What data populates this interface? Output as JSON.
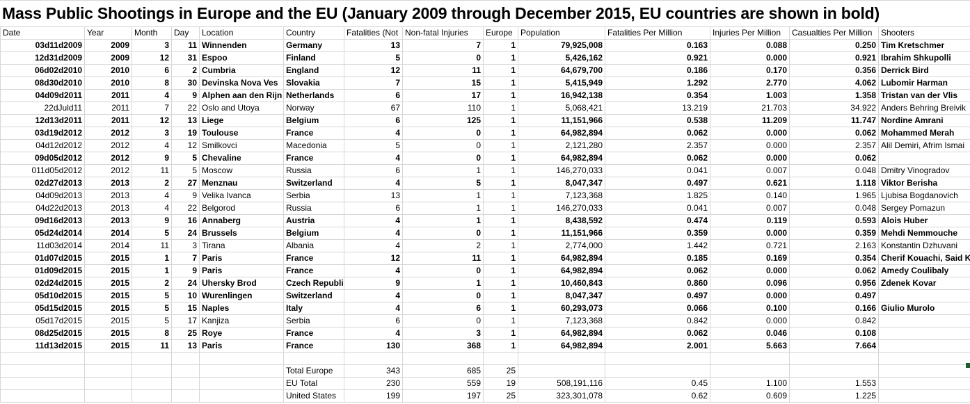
{
  "title": "Mass Public Shootings in Europe and the EU (January 2009 through December 2015, EU countries are shown in bold)",
  "colors": {
    "gridline": "#d6d6d6",
    "fill_handle": "#1e5b2e"
  },
  "table": {
    "columns": [
      "Date",
      "Year",
      "Month",
      "Day",
      "Location",
      "Country",
      "Fatalities (Not",
      "Non-fatal Injuries",
      "Europe",
      "Population",
      "Fatalities Per Million",
      "Injuries Per Million",
      "Casualties Per Million",
      "Shooters"
    ],
    "rows": [
      {
        "bold": true,
        "cells": [
          "03d11d2009",
          "2009",
          "3",
          "11",
          "Winnenden",
          "Germany",
          "13",
          "7",
          "1",
          "79,925,008",
          "0.163",
          "0.088",
          "0.250",
          "Tim Kretschmer"
        ]
      },
      {
        "bold": true,
        "cells": [
          "12d31d2009",
          "2009",
          "12",
          "31",
          "Espoo",
          "Finland",
          "5",
          "0",
          "1",
          "5,426,162",
          "0.921",
          "0.000",
          "0.921",
          "Ibrahim Shkupolli"
        ]
      },
      {
        "bold": true,
        "cells": [
          "06d02d2010",
          "2010",
          "6",
          "2",
          "Cumbria",
          "England",
          "12",
          "11",
          "1",
          "64,679,700",
          "0.186",
          "0.170",
          "0.356",
          "Derrick Bird"
        ]
      },
      {
        "bold": true,
        "cells": [
          "08d30d2010",
          "2010",
          "8",
          "30",
          "Devinska Nova Ves",
          "Slovakia",
          "7",
          "15",
          "1",
          "5,415,949",
          "1.292",
          "2.770",
          "4.062",
          "Lubomir Harman"
        ]
      },
      {
        "bold": true,
        "cells": [
          "04d09d2011",
          "2011",
          "4",
          "9",
          "Alphen aan den Rijn",
          "Netherlands",
          "6",
          "17",
          "1",
          "16,942,138",
          "0.354",
          "1.003",
          "1.358",
          "Tristan van der Vlis"
        ]
      },
      {
        "bold": false,
        "cells": [
          "22dJuld11",
          "2011",
          "7",
          "22",
          "Oslo and Utoya",
          "Norway",
          "67",
          "110",
          "1",
          "5,068,421",
          "13.219",
          "21.703",
          "34.922",
          "Anders Behring Breivik"
        ]
      },
      {
        "bold": true,
        "cells": [
          "12d13d2011",
          "2011",
          "12",
          "13",
          "Liege",
          "Belgium",
          "6",
          "125",
          "1",
          "11,151,966",
          "0.538",
          "11.209",
          "11.747",
          "Nordine Amrani"
        ]
      },
      {
        "bold": true,
        "cells": [
          "03d19d2012",
          "2012",
          "3",
          "19",
          "Toulouse",
          "France",
          "4",
          "0",
          "1",
          "64,982,894",
          "0.062",
          "0.000",
          "0.062",
          "Mohammed Merah"
        ]
      },
      {
        "bold": false,
        "cells": [
          "04d12d2012",
          "2012",
          "4",
          "12",
          "Smilkovci",
          "Macedonia",
          "5",
          "0",
          "1",
          "2,121,280",
          "2.357",
          "0.000",
          "2.357",
          "Alil Demiri, Afrim Ismai"
        ]
      },
      {
        "bold": true,
        "cells": [
          "09d05d2012",
          "2012",
          "9",
          "5",
          "Chevaline",
          "France",
          "4",
          "0",
          "1",
          "64,982,894",
          "0.062",
          "0.000",
          "0.062",
          ""
        ]
      },
      {
        "bold": false,
        "cells": [
          "011d05d2012",
          "2012",
          "11",
          "5",
          "Moscow",
          "Russia",
          "6",
          "1",
          "1",
          "146,270,033",
          "0.041",
          "0.007",
          "0.048",
          "Dmitry Vinogradov"
        ]
      },
      {
        "bold": true,
        "cells": [
          "02d27d2013",
          "2013",
          "2",
          "27",
          "Menznau",
          "Switzerland",
          "4",
          "5",
          "1",
          "8,047,347",
          "0.497",
          "0.621",
          "1.118",
          "Viktor Berisha"
        ]
      },
      {
        "bold": false,
        "cells": [
          "04d09d2013",
          "2013",
          "4",
          "9",
          "Velika Ivanca",
          "Serbia",
          "13",
          "1",
          "1",
          "7,123,368",
          "1.825",
          "0.140",
          "1.965",
          "Ljubisa Bogdanovich"
        ]
      },
      {
        "bold": false,
        "cells": [
          "04d22d2013",
          "2013",
          "4",
          "22",
          "Belgorod",
          "Russia",
          "6",
          "1",
          "1",
          "146,270,033",
          "0.041",
          "0.007",
          "0.048",
          "Sergey Pomazun"
        ]
      },
      {
        "bold": true,
        "cells": [
          "09d16d2013",
          "2013",
          "9",
          "16",
          "Annaberg",
          "Austria",
          "4",
          "1",
          "1",
          "8,438,592",
          "0.474",
          "0.119",
          "0.593",
          "Alois Huber"
        ]
      },
      {
        "bold": true,
        "cells": [
          "05d24d2014",
          "2014",
          "5",
          "24",
          "Brussels",
          "Belgium",
          "4",
          "0",
          "1",
          "11,151,966",
          "0.359",
          "0.000",
          "0.359",
          "Mehdi Nemmouche"
        ]
      },
      {
        "bold": false,
        "cells": [
          "11d03d2014",
          "2014",
          "11",
          "3",
          "Tirana",
          "Albania",
          "4",
          "2",
          "1",
          "2,774,000",
          "1.442",
          "0.721",
          "2.163",
          "Konstantin Dzhuvani"
        ]
      },
      {
        "bold": true,
        "cells": [
          "01d07d2015",
          "2015",
          "1",
          "7",
          "Paris",
          "France",
          "12",
          "11",
          "1",
          "64,982,894",
          "0.185",
          "0.169",
          "0.354",
          "Cherif Kouachi, Said Ko"
        ]
      },
      {
        "bold": true,
        "cells": [
          "01d09d2015",
          "2015",
          "1",
          "9",
          "Paris",
          "France",
          "4",
          "0",
          "1",
          "64,982,894",
          "0.062",
          "0.000",
          "0.062",
          "Amedy Coulibaly"
        ]
      },
      {
        "bold": true,
        "cells": [
          "02d24d2015",
          "2015",
          "2",
          "24",
          "Uhersky Brod",
          "Czech Republic",
          "9",
          "1",
          "1",
          "10,460,843",
          "0.860",
          "0.096",
          "0.956",
          "Zdenek Kovar"
        ]
      },
      {
        "bold": true,
        "cells": [
          "05d10d2015",
          "2015",
          "5",
          "10",
          "Wurenlingen",
          "Switzerland",
          "4",
          "0",
          "1",
          "8,047,347",
          "0.497",
          "0.000",
          "0.497",
          ""
        ]
      },
      {
        "bold": true,
        "cells": [
          "05d15d2015",
          "2015",
          "5",
          "15",
          "Naples",
          "Italy",
          "4",
          "6",
          "1",
          "60,293,073",
          "0.066",
          "0.100",
          "0.166",
          "Giulio Murolo"
        ]
      },
      {
        "bold": false,
        "cells": [
          "05d17d2015",
          "2015",
          "5",
          "17",
          "Kanjiza",
          "Serbia",
          "6",
          "0",
          "1",
          "7,123,368",
          "0.842",
          "0.000",
          "0.842",
          ""
        ]
      },
      {
        "bold": true,
        "cells": [
          "08d25d2015",
          "2015",
          "8",
          "25",
          "Roye",
          "France",
          "4",
          "3",
          "1",
          "64,982,894",
          "0.062",
          "0.046",
          "0.108",
          ""
        ]
      },
      {
        "bold": true,
        "cells": [
          "11d13d2015",
          "2015",
          "11",
          "13",
          "Paris",
          "France",
          "130",
          "368",
          "1",
          "64,982,894",
          "2.001",
          "5.663",
          "7.664",
          ""
        ]
      }
    ],
    "summary_rows": [
      {
        "bold": false,
        "cells": [
          "",
          "",
          "",
          "",
          "",
          "",
          "",
          "",
          "",
          "",
          "",
          "",
          "",
          ""
        ]
      },
      {
        "bold": false,
        "cells": [
          "",
          "",
          "",
          "",
          "",
          "Total Europe",
          "343",
          "685",
          "25",
          "",
          "",
          "",
          "",
          ""
        ]
      },
      {
        "bold": false,
        "cells": [
          "",
          "",
          "",
          "",
          "",
          "EU Total",
          "230",
          "559",
          "19",
          "508,191,116",
          "0.45",
          "1.100",
          "1.553",
          ""
        ]
      },
      {
        "bold": false,
        "cells": [
          "",
          "",
          "",
          "",
          "",
          "United States",
          "199",
          "197",
          "25",
          "323,301,078",
          "0.62",
          "0.609",
          "1.225",
          ""
        ]
      }
    ]
  }
}
